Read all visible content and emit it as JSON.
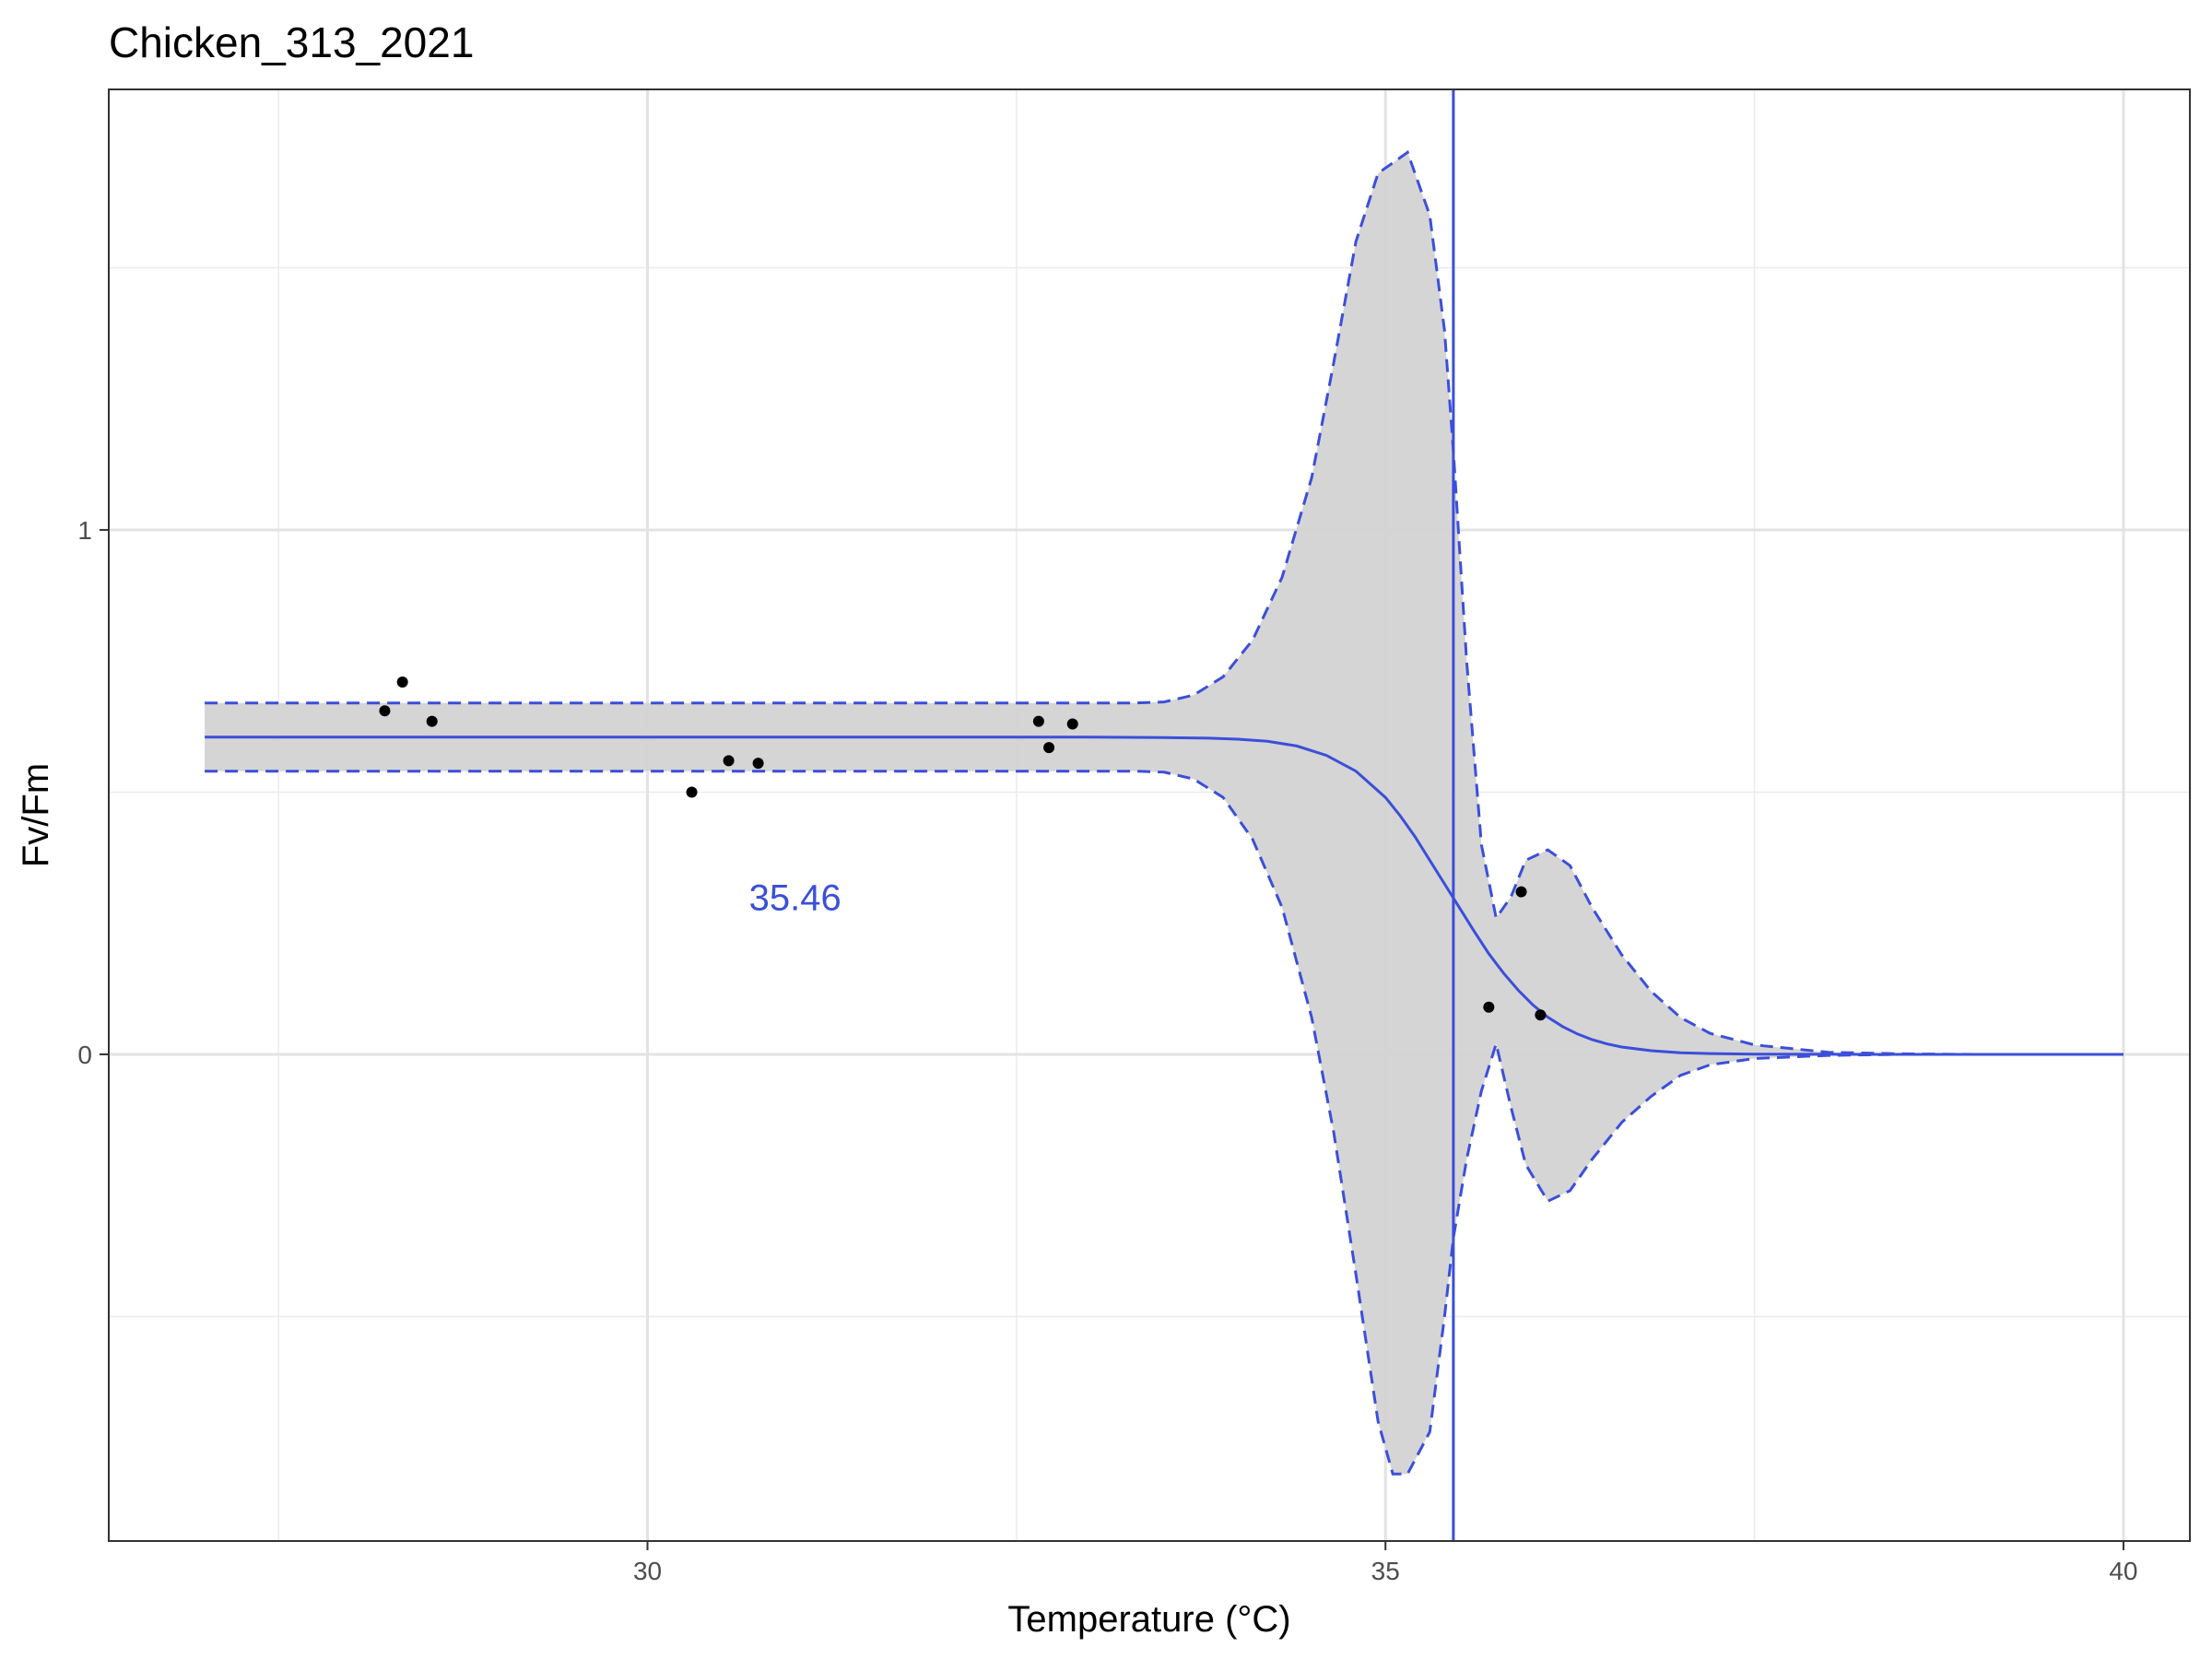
{
  "chart_data": {
    "type": "line",
    "title": "Chicken_313_2021",
    "xlabel": "Temperature (°C)",
    "ylabel": "Fv/Fm",
    "xlim": [
      26.35,
      40.45
    ],
    "ylim": [
      -0.928,
      1.84
    ],
    "x_ticks": [
      30,
      35,
      40
    ],
    "y_ticks": [
      0,
      1
    ],
    "x_minor_grid": [
      27.5,
      32.5,
      37.5
    ],
    "y_minor_grid": [
      -0.5,
      0.5,
      1.5
    ],
    "grid": true,
    "legend": "none",
    "colors": {
      "fit": "#3b4fd9",
      "ribbon": "#d3d3d3",
      "points": "#000000",
      "vline": "#3b4fd9",
      "annotation": "#3b4fd9"
    },
    "annotation": {
      "text": "35.46",
      "x": 31.0,
      "y": 0.3
    },
    "vline_x": 35.46,
    "points": [
      {
        "x": 28.22,
        "y": 0.655
      },
      {
        "x": 28.34,
        "y": 0.71
      },
      {
        "x": 28.54,
        "y": 0.635
      },
      {
        "x": 30.3,
        "y": 0.5
      },
      {
        "x": 30.55,
        "y": 0.56
      },
      {
        "x": 30.75,
        "y": 0.555
      },
      {
        "x": 32.65,
        "y": 0.635
      },
      {
        "x": 32.72,
        "y": 0.585
      },
      {
        "x": 32.88,
        "y": 0.63
      },
      {
        "x": 35.7,
        "y": 0.09
      },
      {
        "x": 35.92,
        "y": 0.31
      },
      {
        "x": 36.05,
        "y": 0.075
      }
    ],
    "series": [
      {
        "role": "fit",
        "x": [
          27.0,
          27.5,
          28.0,
          28.5,
          29.0,
          29.5,
          30.0,
          30.5,
          31.0,
          31.5,
          32.0,
          32.5,
          33.0,
          33.5,
          33.8,
          34.0,
          34.2,
          34.4,
          34.6,
          34.8,
          35.0,
          35.1,
          35.2,
          35.3,
          35.4,
          35.5,
          35.6,
          35.7,
          35.8,
          35.9,
          36.0,
          36.1,
          36.2,
          36.3,
          36.4,
          36.5,
          36.6,
          36.8,
          37.0,
          37.2,
          37.5,
          38.0,
          38.5,
          39.0,
          39.5,
          40.0
        ],
        "y": [
          0.605,
          0.605,
          0.605,
          0.605,
          0.605,
          0.605,
          0.605,
          0.605,
          0.605,
          0.605,
          0.605,
          0.605,
          0.605,
          0.604,
          0.603,
          0.601,
          0.597,
          0.588,
          0.57,
          0.54,
          0.49,
          0.455,
          0.415,
          0.37,
          0.325,
          0.28,
          0.235,
          0.192,
          0.155,
          0.122,
          0.094,
          0.071,
          0.053,
          0.039,
          0.028,
          0.02,
          0.014,
          0.007,
          0.003,
          0.0015,
          0.0005,
          0.0001,
          0.0,
          0.0,
          0.0,
          0.0
        ]
      },
      {
        "role": "upper",
        "x": [
          27.0,
          27.5,
          28.0,
          28.5,
          29.0,
          29.5,
          30.0,
          30.5,
          31.0,
          31.5,
          32.0,
          32.5,
          33.0,
          33.3,
          33.5,
          33.7,
          33.9,
          34.1,
          34.3,
          34.5,
          34.65,
          34.8,
          34.95,
          35.05,
          35.15,
          35.3,
          35.4,
          35.46,
          35.55,
          35.65,
          35.75,
          35.85,
          35.95,
          36.1,
          36.25,
          36.4,
          36.6,
          36.8,
          37.0,
          37.2,
          37.5,
          38.0,
          38.5,
          39.0,
          39.5,
          40.0
        ],
        "y": [
          0.67,
          0.67,
          0.67,
          0.67,
          0.67,
          0.67,
          0.67,
          0.67,
          0.67,
          0.67,
          0.67,
          0.67,
          0.67,
          0.67,
          0.672,
          0.685,
          0.72,
          0.79,
          0.91,
          1.1,
          1.32,
          1.55,
          1.68,
          1.7,
          1.72,
          1.6,
          1.38,
          1.15,
          0.75,
          0.4,
          0.26,
          0.3,
          0.37,
          0.39,
          0.36,
          0.28,
          0.19,
          0.12,
          0.07,
          0.04,
          0.018,
          0.004,
          0.001,
          0.0,
          0.0,
          0.0
        ]
      },
      {
        "role": "lower",
        "x": [
          27.0,
          27.5,
          28.0,
          28.5,
          29.0,
          29.5,
          30.0,
          30.5,
          31.0,
          31.5,
          32.0,
          32.5,
          33.0,
          33.3,
          33.5,
          33.7,
          33.9,
          34.1,
          34.3,
          34.5,
          34.65,
          34.8,
          34.95,
          35.05,
          35.15,
          35.3,
          35.4,
          35.46,
          35.55,
          35.65,
          35.75,
          35.85,
          35.95,
          36.1,
          36.25,
          36.4,
          36.6,
          36.8,
          37.0,
          37.2,
          37.5,
          38.0,
          38.5,
          39.0,
          39.5,
          40.0
        ],
        "y": [
          0.54,
          0.54,
          0.54,
          0.54,
          0.54,
          0.54,
          0.54,
          0.54,
          0.54,
          0.54,
          0.54,
          0.54,
          0.54,
          0.54,
          0.538,
          0.525,
          0.49,
          0.41,
          0.28,
          0.07,
          -0.15,
          -0.42,
          -0.7,
          -0.8,
          -0.8,
          -0.72,
          -0.5,
          -0.35,
          -0.2,
          -0.07,
          0.02,
          -0.1,
          -0.21,
          -0.28,
          -0.26,
          -0.2,
          -0.13,
          -0.08,
          -0.04,
          -0.02,
          -0.008,
          -0.002,
          0.0,
          0.0,
          0.0,
          0.0
        ]
      }
    ]
  }
}
